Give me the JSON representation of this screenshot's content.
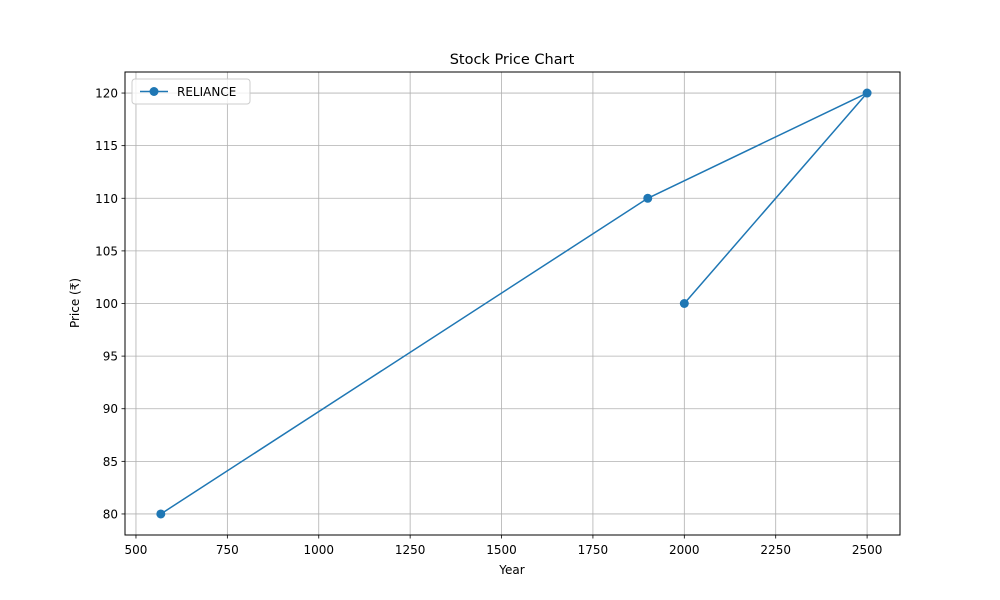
{
  "chart_data": {
    "type": "line",
    "title": "Stock Price Chart",
    "xlabel": "Year",
    "ylabel": "Price (₹)",
    "xlim": [
      470,
      2590
    ],
    "ylim": [
      78,
      122
    ],
    "xticks": [
      500,
      750,
      1000,
      1250,
      1500,
      1750,
      2000,
      2250,
      2500
    ],
    "yticks": [
      80,
      85,
      90,
      95,
      100,
      105,
      110,
      115,
      120
    ],
    "grid": true,
    "legend_position": "top-left",
    "series": [
      {
        "name": "RELIANCE",
        "color": "#1f77b4",
        "marker": "circle",
        "points": [
          {
            "x": 2000,
            "y": 100
          },
          {
            "x": 2500,
            "y": 120
          },
          {
            "x": 1900,
            "y": 110
          },
          {
            "x": 568,
            "y": 80
          }
        ]
      }
    ]
  }
}
